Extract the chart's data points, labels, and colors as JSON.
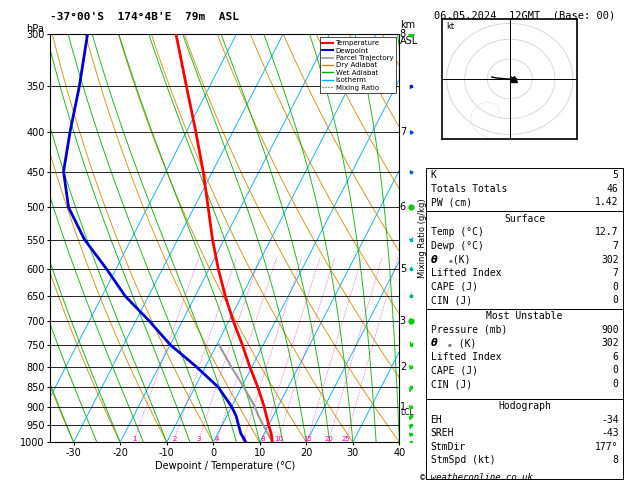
{
  "title_left": "-37°00'S  174°4B'E  79m  ASL",
  "title_right": "06.05.2024  12GMT  (Base: 00)",
  "xlabel": "Dewpoint / Temperature (°C)",
  "copyright": "© weatheronline.co.uk",
  "bg_color": "#ffffff",
  "p_min": 300,
  "p_max": 1000,
  "temp_min": -35,
  "temp_max": 40,
  "temp_ticks": [
    -30,
    -20,
    -10,
    0,
    10,
    20,
    30,
    40
  ],
  "pressure_ticks": [
    300,
    350,
    400,
    450,
    500,
    550,
    600,
    650,
    700,
    750,
    800,
    850,
    900,
    950,
    1000
  ],
  "km_labels": [
    [
      300,
      "8"
    ],
    [
      400,
      "7"
    ],
    [
      500,
      "6"
    ],
    [
      600,
      "5"
    ],
    [
      700,
      "3"
    ],
    [
      800,
      "2"
    ],
    [
      900,
      "1"
    ]
  ],
  "lcl_pressure": 915,
  "skew_factor": 45,
  "temperature_profile": {
    "pressure": [
      1000,
      975,
      950,
      925,
      900,
      850,
      800,
      750,
      700,
      650,
      600,
      550,
      500,
      450,
      400,
      350,
      300
    ],
    "temp": [
      12.7,
      11.5,
      10.0,
      8.5,
      7.0,
      3.5,
      -0.5,
      -4.5,
      -9.0,
      -13.5,
      -18.0,
      -22.5,
      -27.0,
      -32.0,
      -38.0,
      -45.0,
      -53.0
    ]
  },
  "dewpoint_profile": {
    "pressure": [
      1000,
      975,
      950,
      925,
      900,
      850,
      800,
      750,
      700,
      650,
      600,
      550,
      500,
      450,
      400,
      350,
      300
    ],
    "dewp": [
      7.0,
      5.0,
      3.5,
      2.0,
      0.0,
      -5.0,
      -12.0,
      -20.0,
      -27.0,
      -35.0,
      -42.0,
      -50.0,
      -57.0,
      -62.0,
      -65.0,
      -68.0,
      -72.0
    ]
  },
  "parcel_profile": {
    "pressure": [
      1000,
      975,
      950,
      925,
      900,
      850,
      800,
      750
    ],
    "temp": [
      12.7,
      10.8,
      8.8,
      6.8,
      5.0,
      0.5,
      -4.5,
      -9.5
    ]
  },
  "mixing_ratio_values": [
    1,
    2,
    3,
    4,
    6,
    8,
    10,
    15,
    20,
    25
  ],
  "colors": {
    "temperature": "#ff0000",
    "dewpoint": "#0000cc",
    "parcel": "#999999",
    "dry_adiabat": "#cc8800",
    "wet_adiabat": "#00aa00",
    "isotherm": "#00aaff",
    "mixing_ratio": "#ff00aa",
    "isobar": "#000000"
  },
  "stats": {
    "K": 5,
    "Totals_Totals": 46,
    "PW_cm": 1.42,
    "surface_temp": 12.7,
    "surface_dewp": 7,
    "surface_theta_e": 302,
    "surface_lifted_index": 7,
    "surface_CAPE": 0,
    "surface_CIN": 0,
    "mu_pressure": 900,
    "mu_theta_e": 302,
    "mu_lifted_index": 6,
    "mu_CAPE": 0,
    "mu_CIN": 0,
    "EH": -34,
    "SREH": -43,
    "StmDir": 177,
    "StmSpd": 8
  },
  "wind_data": {
    "pressure": [
      1000,
      975,
      950,
      925,
      900,
      850,
      800,
      750,
      700,
      650,
      600,
      550,
      500,
      450,
      400,
      350,
      300
    ],
    "speed_kt": [
      5,
      8,
      10,
      12,
      15,
      15,
      10,
      8,
      10,
      15,
      20,
      20,
      15,
      15,
      10,
      10,
      10
    ],
    "direction": [
      200,
      210,
      215,
      220,
      225,
      230,
      240,
      250,
      255,
      260,
      265,
      270,
      275,
      280,
      285,
      290,
      295
    ],
    "colors": [
      "#00cc00",
      "#00cc00",
      "#00cc00",
      "#00cc00",
      "#00cc00",
      "#00cc00",
      "#00cc00",
      "#00cc00",
      "#00cc00",
      "#00aa88",
      "#00aaaa",
      "#00aaaa",
      "#0088cc",
      "#0066cc",
      "#0044cc",
      "#0022cc",
      "#0000cc"
    ]
  }
}
